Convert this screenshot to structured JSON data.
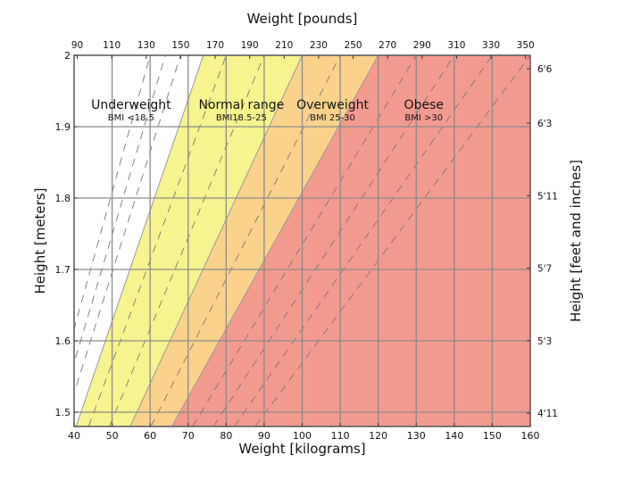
{
  "chart_data": {
    "type": "area",
    "title": "",
    "xlabel": "Weight [kilograms]",
    "x2label": "Weight [pounds]",
    "ylabel": "Height [meters]",
    "y2label": "Height [feet and inches]",
    "xlim": [
      40,
      160
    ],
    "ylim": [
      1.48,
      2.0
    ],
    "grid": true,
    "x_ticks": [
      40,
      50,
      60,
      70,
      80,
      90,
      100,
      110,
      120,
      130,
      140,
      150,
      160
    ],
    "y_ticks": [
      1.5,
      1.6,
      1.7,
      1.8,
      1.9,
      2
    ],
    "x2_ticks_lb": [
      90,
      110,
      130,
      150,
      170,
      190,
      210,
      230,
      250,
      270,
      290,
      310,
      330,
      350
    ],
    "y2_ticks": [
      {
        "label": "6'6",
        "inches": 78
      },
      {
        "label": "6'3",
        "inches": 75
      },
      {
        "label": "5'11",
        "inches": 71
      },
      {
        "label": "5'7",
        "inches": 67
      },
      {
        "label": "5'3",
        "inches": 63
      },
      {
        "label": "4'11",
        "inches": 59
      }
    ],
    "regions": [
      {
        "name": "Underweight",
        "range_label": "BMI <18.5",
        "bmi_min": 0,
        "bmi_max": 18.5,
        "color": "#ffffff",
        "label_kg": 55,
        "label_m": 1.925
      },
      {
        "name": "Normal range",
        "range_label": "BMI18.5-25",
        "bmi_min": 18.5,
        "bmi_max": 25,
        "color": "#f7f48f",
        "label_kg": 84,
        "label_m": 1.925
      },
      {
        "name": "Overweight",
        "range_label": "BMI 25-30",
        "bmi_min": 25,
        "bmi_max": 30,
        "color": "#fbd28c",
        "label_kg": 108,
        "label_m": 1.925
      },
      {
        "name": "Obese",
        "range_label": "BMI >30",
        "bmi_min": 30,
        "bmi_max": 1000,
        "color": "#f49b8f",
        "label_kg": 132,
        "label_m": 1.925
      }
    ],
    "dashed_bmi_lines": [
      15,
      16,
      17,
      20,
      22.5,
      27.5,
      32.5,
      35,
      37.5,
      40
    ]
  }
}
